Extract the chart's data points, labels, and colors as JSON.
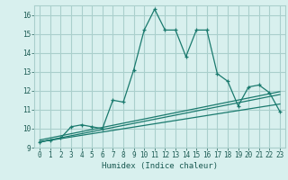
{
  "title": "",
  "xlabel": "Humidex (Indice chaleur)",
  "ylabel": "",
  "background_color": "#d8f0ee",
  "grid_color": "#aacfcc",
  "line_color": "#1a7a6e",
  "xlim": [
    -0.5,
    23.5
  ],
  "ylim": [
    9,
    16.5
  ],
  "xticks": [
    0,
    1,
    2,
    3,
    4,
    5,
    6,
    7,
    8,
    9,
    10,
    11,
    12,
    13,
    14,
    15,
    16,
    17,
    18,
    19,
    20,
    21,
    22,
    23
  ],
  "yticks": [
    9,
    10,
    11,
    12,
    13,
    14,
    15,
    16
  ],
  "main_series": [
    [
      0,
      9.3
    ],
    [
      1,
      9.4
    ],
    [
      2,
      9.5
    ],
    [
      3,
      10.1
    ],
    [
      4,
      10.2
    ],
    [
      5,
      10.1
    ],
    [
      6,
      10.0
    ],
    [
      7,
      11.5
    ],
    [
      8,
      11.4
    ],
    [
      9,
      13.1
    ],
    [
      10,
      15.2
    ],
    [
      11,
      16.3
    ],
    [
      12,
      15.2
    ],
    [
      13,
      15.2
    ],
    [
      14,
      13.8
    ],
    [
      15,
      15.2
    ],
    [
      16,
      15.2
    ],
    [
      17,
      12.9
    ],
    [
      18,
      12.5
    ],
    [
      19,
      11.2
    ],
    [
      20,
      12.2
    ],
    [
      21,
      12.3
    ],
    [
      22,
      11.9
    ],
    [
      23,
      10.9
    ]
  ],
  "linear_series": [
    [
      [
        0,
        9.3
      ],
      [
        23,
        11.8
      ]
    ],
    [
      [
        0,
        9.3
      ],
      [
        23,
        11.3
      ]
    ],
    [
      [
        0,
        9.4
      ],
      [
        23,
        11.95
      ]
    ]
  ]
}
